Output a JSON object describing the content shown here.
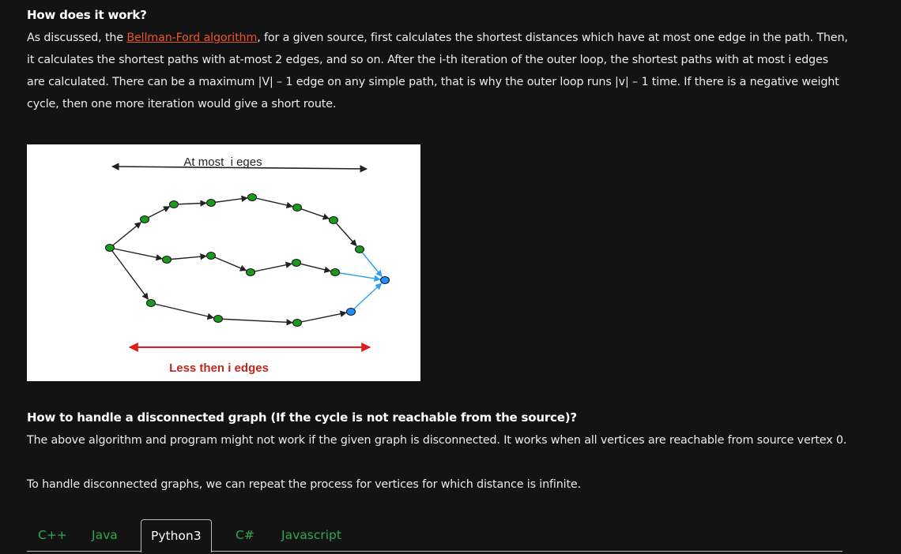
{
  "section1": {
    "heading": "How does it work?",
    "para_before_link": "As discussed, the ",
    "link_text": "Bellman-Ford algorithm",
    "para_after_link": ", for a given source, first calculates the shortest distances which have at most one edge in the path. Then, it calculates the shortest paths with at-most 2 edges, and so on. After the i-th iteration of the outer loop, the shortest paths with at most i edges are calculated. There can be a maximum |V| – 1 edge on any simple path, that is why the outer loop runs |v| – 1 time. If there is a negative weight cycle, then one more iteration would give a short route."
  },
  "figure": {
    "top_label": "At most  i eges",
    "bottom_label": "Less then i edges",
    "colors": {
      "node_green": "#1a9a1a",
      "node_blue": "#1e90ff",
      "edge_black": "#222222",
      "edge_blue": "#2aa0f0",
      "arrow_red": "#e21b1b",
      "bottom_label": "#c0271d"
    }
  },
  "section2": {
    "heading": "How to handle a disconnected graph (If the cycle is not reachable from the source)?",
    "para1": "The above algorithm and program might not work if the given graph is disconnected. It works when all vertices are reachable from source vertex 0.",
    "para2": "To handle disconnected graphs, we can repeat the process for vertices for which distance is infinite."
  },
  "tabs": {
    "items": [
      "C++",
      "Java",
      "Python3",
      "C#",
      "Javascript"
    ],
    "active": "Python3"
  }
}
